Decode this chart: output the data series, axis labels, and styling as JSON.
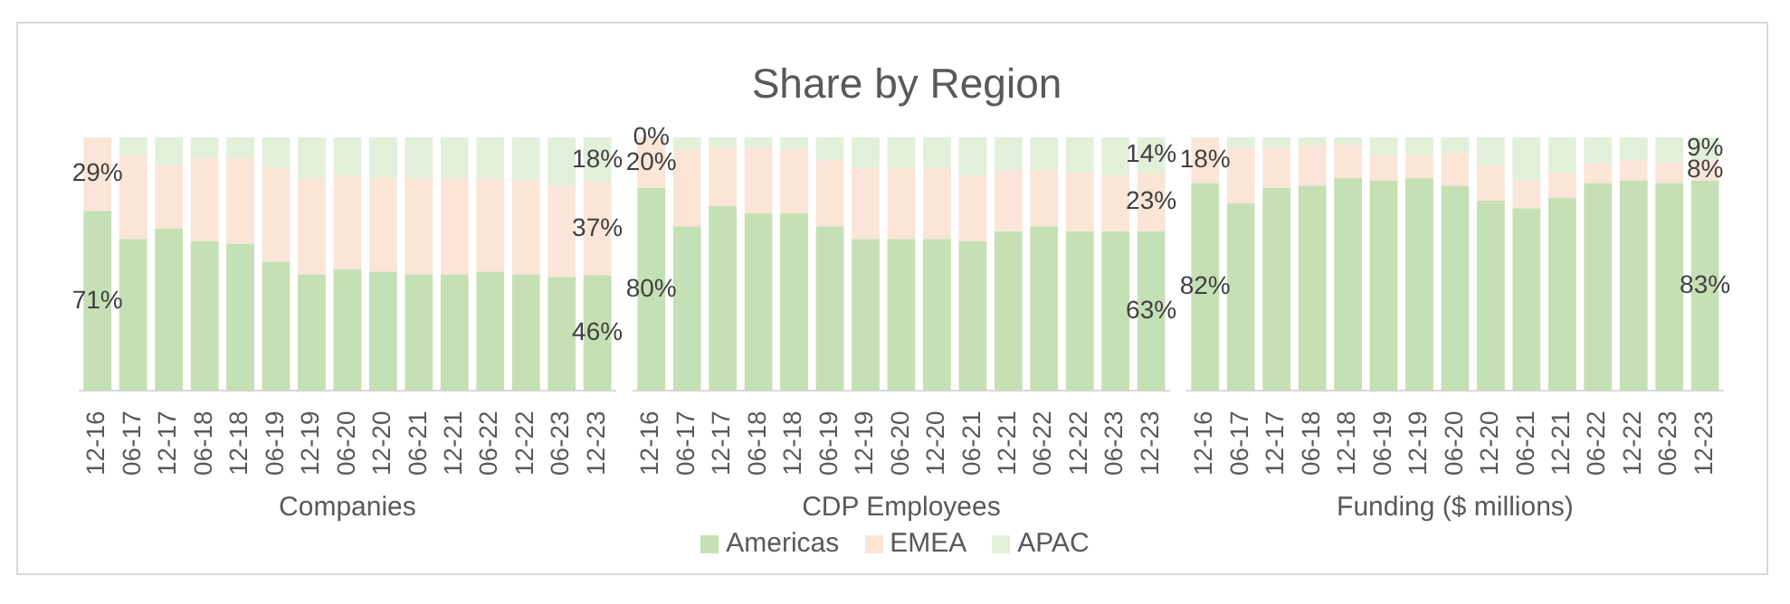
{
  "chart_data": [
    {
      "type": "bar",
      "xlabel": "Companies",
      "stacked": true,
      "ylim": [
        0,
        100
      ],
      "tick_labels": "x",
      "categories": [
        "12-16",
        "06-17",
        "12-17",
        "06-18",
        "12-18",
        "06-19",
        "12-19",
        "06-20",
        "12-20",
        "06-21",
        "12-21",
        "06-22",
        "12-22",
        "06-23",
        "12-23"
      ],
      "series": [
        {
          "color": "#c5e0b4",
          "values": [
            71,
            60,
            64,
            59,
            58,
            51,
            46,
            48,
            47,
            46,
            46,
            47,
            46,
            45,
            45.6
          ],
          "value_labels": [
            "71%",
            null,
            null,
            null,
            null,
            null,
            null,
            null,
            null,
            null,
            null,
            null,
            null,
            null,
            "46%"
          ]
        },
        {
          "color": "#fbe5d6",
          "values": [
            29,
            33,
            25,
            33,
            34,
            37,
            38,
            37,
            37,
            38,
            38,
            37,
            37,
            36,
            36.6
          ],
          "value_labels": [
            "29%",
            null,
            null,
            null,
            null,
            null,
            null,
            null,
            null,
            null,
            null,
            null,
            null,
            null,
            "37%"
          ]
        },
        {
          "color": "#e2f0d9",
          "values": [
            0,
            7,
            11,
            8,
            8,
            12,
            16,
            15,
            16,
            16,
            16,
            16,
            17,
            19,
            17.8
          ],
          "value_labels": [
            null,
            null,
            null,
            null,
            null,
            null,
            null,
            null,
            null,
            null,
            null,
            null,
            null,
            null,
            "18%"
          ]
        }
      ]
    },
    {
      "type": "bar",
      "title": "Share by Region",
      "xlabel": "CDP Employees",
      "stacked": true,
      "ylim": [
        0,
        100
      ],
      "tick_labels": "x",
      "legend": "bottom",
      "categories": [
        "12-16",
        "06-17",
        "12-17",
        "06-18",
        "12-18",
        "06-19",
        "12-19",
        "06-20",
        "12-20",
        "06-21",
        "12-21",
        "06-22",
        "12-22",
        "06-23",
        "12-23"
      ],
      "series": [
        {
          "name": "Americas",
          "color": "#c5e0b4",
          "values": [
            80,
            65,
            73,
            70,
            70,
            65,
            60,
            60,
            60,
            59,
            63,
            65,
            63,
            63,
            63
          ],
          "value_labels": [
            "80%",
            null,
            null,
            null,
            null,
            null,
            null,
            null,
            null,
            null,
            null,
            null,
            null,
            null,
            "63%"
          ]
        },
        {
          "name": "EMEA",
          "color": "#fbe5d6",
          "values": [
            20,
            30,
            23,
            26,
            25,
            26,
            28,
            28,
            28,
            26,
            24,
            22,
            23,
            22,
            23
          ],
          "value_labels": [
            "20%",
            null,
            null,
            null,
            null,
            null,
            null,
            null,
            null,
            null,
            null,
            null,
            null,
            null,
            "23%"
          ]
        },
        {
          "name": "APAC",
          "color": "#e2f0d9",
          "values": [
            0,
            5,
            4,
            4,
            5,
            9,
            12,
            12,
            12,
            15,
            13,
            13,
            14,
            15,
            14
          ],
          "value_labels": [
            "0%",
            null,
            null,
            null,
            null,
            null,
            null,
            null,
            null,
            null,
            null,
            null,
            null,
            null,
            "14%"
          ]
        }
      ]
    },
    {
      "type": "bar",
      "xlabel": "Funding ($ millions)",
      "stacked": true,
      "ylim": [
        0,
        100
      ],
      "tick_labels": "x",
      "categories": [
        "12-16",
        "06-17",
        "12-17",
        "06-18",
        "12-18",
        "06-19",
        "12-19",
        "06-20",
        "12-20",
        "06-21",
        "12-21",
        "06-22",
        "12-22",
        "06-23",
        "12-23"
      ],
      "series": [
        {
          "color": "#c5e0b4",
          "values": [
            82,
            74,
            80,
            81,
            84,
            83,
            84,
            81,
            75,
            72,
            76,
            82,
            83,
            82,
            83
          ],
          "value_labels": [
            "82%",
            null,
            null,
            null,
            null,
            null,
            null,
            null,
            null,
            null,
            null,
            null,
            null,
            null,
            "83%"
          ]
        },
        {
          "color": "#fbe5d6",
          "values": [
            18,
            22,
            16,
            16,
            13,
            10,
            9,
            13,
            14,
            11,
            10,
            8,
            8,
            8,
            8
          ],
          "value_labels": [
            "18%",
            null,
            null,
            null,
            null,
            null,
            null,
            null,
            null,
            null,
            null,
            null,
            null,
            null,
            "8%"
          ]
        },
        {
          "color": "#e2f0d9",
          "values": [
            0,
            4,
            4,
            3,
            3,
            7,
            7,
            6,
            11,
            17,
            14,
            10,
            9,
            10,
            9
          ],
          "value_labels": [
            null,
            null,
            null,
            null,
            null,
            null,
            null,
            null,
            null,
            null,
            null,
            null,
            null,
            null,
            "9%"
          ]
        }
      ]
    }
  ]
}
